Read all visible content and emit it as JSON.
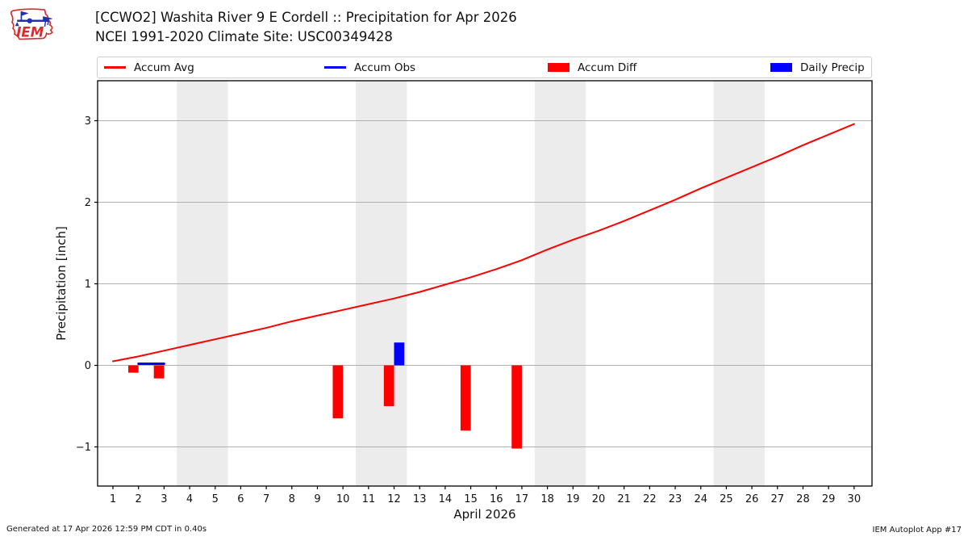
{
  "header": {
    "title_line1": "[CCWO2] Washita River 9 E Cordell :: Precipitation for Apr 2026",
    "title_line2": "NCEI 1991-2020 Climate Site: USC00349428",
    "logo_text": "IEM"
  },
  "legend": {
    "items": [
      {
        "label": "Accum Avg",
        "type": "line",
        "color": "#ff0000"
      },
      {
        "label": "Accum Obs",
        "type": "line",
        "color": "#0000ff"
      },
      {
        "label": "Accum Diff",
        "type": "rect",
        "color": "#ff0000"
      },
      {
        "label": "Daily Precip",
        "type": "rect",
        "color": "#0000ff"
      }
    ]
  },
  "footer": {
    "generated": "Generated at 17 Apr 2026 12:59 PM CDT in 0.40s",
    "app": "IEM Autoplot App #17"
  },
  "chart_data": {
    "type": "line+bar",
    "title": "[CCWO2] Washita River 9 E Cordell :: Precipitation for Apr 2026",
    "subtitle": "NCEI 1991-2020 Climate Site: USC00349428",
    "xlabel": "April 2026",
    "ylabel": "Precipitation [inch]",
    "xlim": [
      0.4,
      30.7
    ],
    "ylim": [
      -1.48,
      3.49
    ],
    "xticks": [
      1,
      2,
      3,
      4,
      5,
      6,
      7,
      8,
      9,
      10,
      11,
      12,
      13,
      14,
      15,
      16,
      17,
      18,
      19,
      20,
      21,
      22,
      23,
      24,
      25,
      26,
      27,
      28,
      29,
      30
    ],
    "yticks": [
      -1,
      0,
      1,
      2,
      3
    ],
    "ytick_labels": [
      "−1",
      "0",
      "1",
      "2",
      "3"
    ],
    "grid": "horizontal",
    "legend_position": "top",
    "weekend_bands": [
      [
        3.5,
        5.5
      ],
      [
        10.5,
        12.5
      ],
      [
        17.5,
        19.5
      ],
      [
        24.5,
        26.5
      ]
    ],
    "colors": {
      "band": "#ececec",
      "grid": "#b0b0b0",
      "spine": "#000000"
    },
    "series": [
      {
        "name": "Accum Avg",
        "type": "line",
        "color": "#ff0000",
        "width": 2,
        "x": [
          1,
          2,
          3,
          4,
          5,
          6,
          7,
          8,
          9,
          10,
          11,
          12,
          13,
          14,
          15,
          16,
          17,
          18,
          19,
          20,
          21,
          22,
          23,
          24,
          25,
          26,
          27,
          28,
          29,
          30
        ],
        "y": [
          0.05,
          0.11,
          0.18,
          0.25,
          0.32,
          0.39,
          0.46,
          0.54,
          0.61,
          0.68,
          0.75,
          0.82,
          0.9,
          0.99,
          1.08,
          1.18,
          1.29,
          1.42,
          1.54,
          1.65,
          1.77,
          1.9,
          2.03,
          2.17,
          2.3,
          2.43,
          2.56,
          2.7,
          2.83,
          2.96
        ]
      },
      {
        "name": "Accum Obs",
        "type": "line",
        "color": "#0000ff",
        "width": 3,
        "x": [
          2,
          3
        ],
        "y": [
          0.02,
          0.02
        ]
      },
      {
        "name": "Accum Diff",
        "type": "bar",
        "color": "#ff0000",
        "align": "left",
        "bar_width": 0.4,
        "points": [
          {
            "x": 2,
            "y": -0.09
          },
          {
            "x": 3,
            "y": -0.16
          },
          {
            "x": 10,
            "y": -0.65
          },
          {
            "x": 12,
            "y": -0.5
          },
          {
            "x": 15,
            "y": -0.8
          },
          {
            "x": 17,
            "y": -1.02
          }
        ]
      },
      {
        "name": "Daily Precip",
        "type": "bar",
        "color": "#0000ff",
        "align": "right",
        "bar_width": 0.4,
        "points": [
          {
            "x": 12,
            "y": 0.28
          }
        ]
      }
    ]
  }
}
